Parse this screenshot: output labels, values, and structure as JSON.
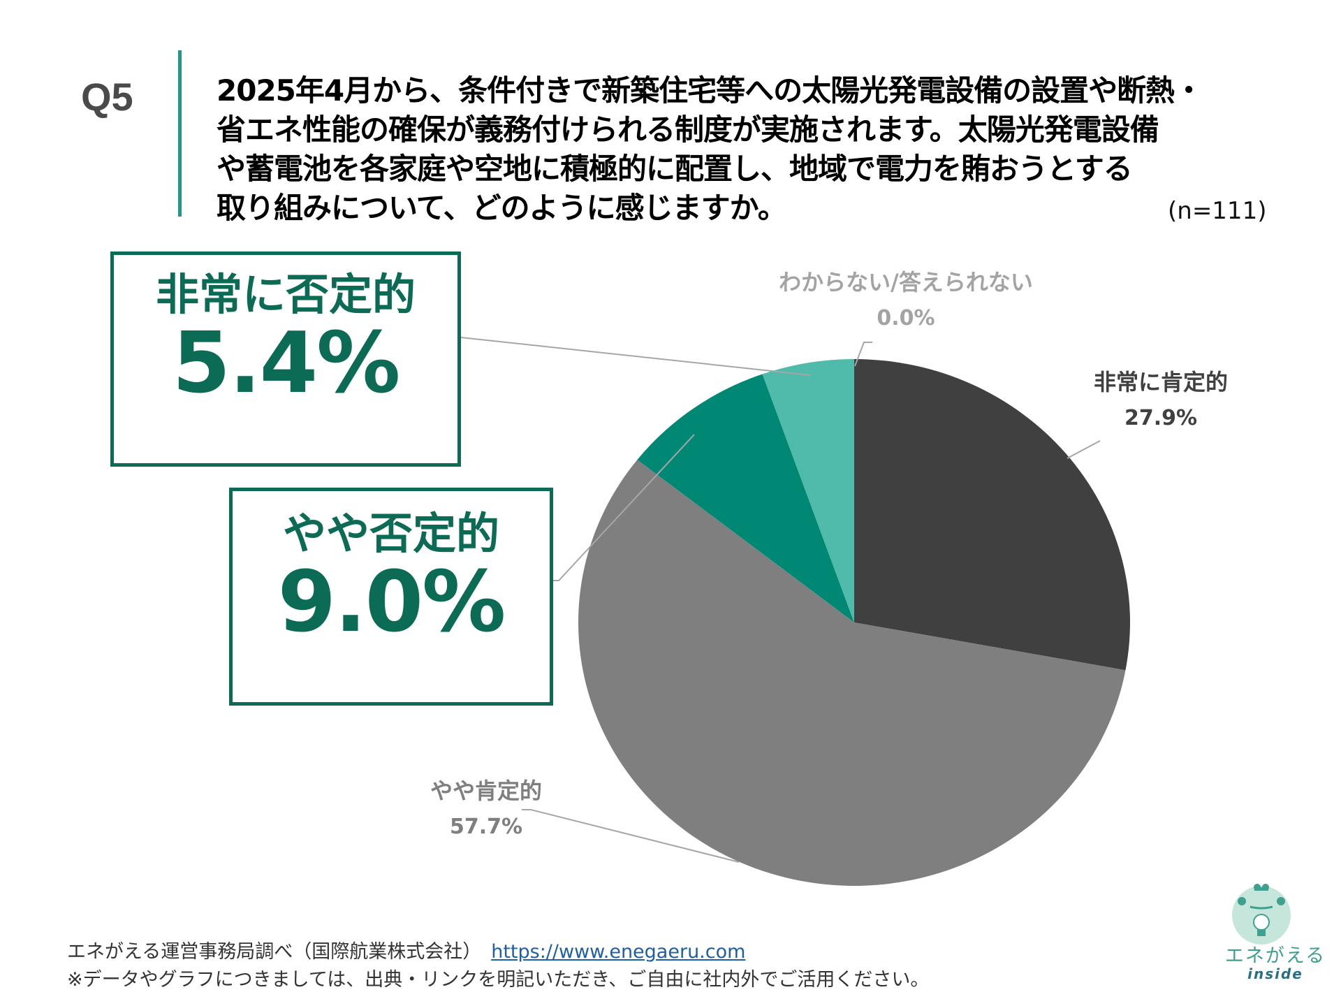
{
  "header": {
    "question_number": "Q5",
    "question_lines": [
      "2025年4月から、条件付きで新築住宅等への太陽光発電設備の設置や断熱・",
      "省エネ性能の確保が義務付けられる制度が実施されます。太陽光発電設備",
      "や蓄電池を各家庭や空地に積極的に配置し、地域で電力を賄おうとする",
      "取り組みについて、どのように感じますか。"
    ],
    "sample_size": "(n=111)"
  },
  "callouts": {
    "very_negative": {
      "label": "非常に否定的",
      "value": "5.4%"
    },
    "somewhat_negative": {
      "label": "やや否定的",
      "value": "9.0%"
    }
  },
  "pie_labels": {
    "unknown": {
      "label": "わからない/答えられない",
      "value": "0.0%"
    },
    "very_positive": {
      "label": "非常に肯定的",
      "value": "27.9%"
    },
    "somewhat_positive": {
      "label": "やや肯定的",
      "value": "57.7%"
    }
  },
  "colors": {
    "very_positive": "#404040",
    "somewhat_positive": "#7f7f7f",
    "somewhat_negative": "#008874",
    "very_negative": "#50bbaa",
    "unknown": "#a3a3a3",
    "accent": "#0b6b54",
    "divider": "#1f9a86"
  },
  "footer": {
    "source": "エネがえる運営事務局調べ（国際航業株式会社）",
    "link": "https://www.enegaeru.com",
    "note": "※データやグラフにつきましては、出典・リンクを明記いただき、ご自由に社内外でご活用ください。"
  },
  "logo": {
    "name": "エネがえる",
    "sub": "inside"
  },
  "chart_data": {
    "type": "pie",
    "title": "2025年4月から、条件付きで新築住宅等への太陽光発電設備の設置や断熱・省エネ性能の確保が義務付けられる制度が実施されます。太陽光発電設備や蓄電池を各家庭や空地に積極的に配置し、地域で電力を賄おうとする取り組みについて、どのように感じますか。",
    "subtitle": "(n=111)",
    "categories": [
      "非常に肯定的",
      "やや肯定的",
      "やや否定的",
      "非常に否定的",
      "わからない/答えられない"
    ],
    "values": [
      27.9,
      57.7,
      9.0,
      5.4,
      0.0
    ],
    "unit": "%",
    "colors": [
      "#404040",
      "#7f7f7f",
      "#008874",
      "#50bbaa",
      "#a3a3a3"
    ],
    "start_angle": "12 o'clock, clockwise",
    "legend": "none (data labels with leader lines)"
  }
}
